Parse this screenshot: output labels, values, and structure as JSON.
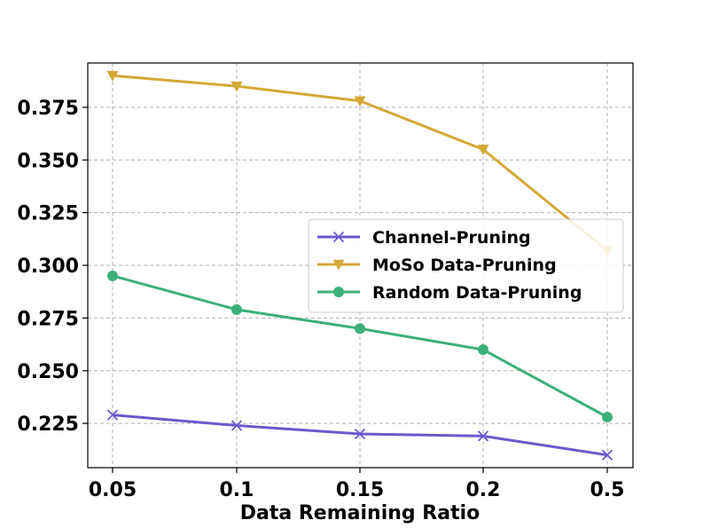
{
  "chart_data": {
    "type": "line",
    "categories": [
      "0.05",
      "0.1",
      "0.15",
      "0.2",
      "0.5"
    ],
    "xlabel": "Data Remaining Ratio",
    "ylabel": "",
    "ylim": [
      0.204,
      0.396
    ],
    "yticks": [
      "0.225",
      "0.250",
      "0.275",
      "0.300",
      "0.325",
      "0.350",
      "0.375"
    ],
    "grid": true,
    "legend_position": "center-right",
    "series": [
      {
        "name": "Channel-Pruning",
        "color": "#6a5acd",
        "marker": "x",
        "values": [
          0.229,
          0.224,
          0.22,
          0.219,
          0.21
        ]
      },
      {
        "name": "MoSo Data-Pruning",
        "color": "#d4a836",
        "marker": "triangle-down",
        "values": [
          0.39,
          0.385,
          0.378,
          0.355,
          0.307
        ]
      },
      {
        "name": "Random Data-Pruning",
        "color": "#3cb07a",
        "marker": "circle",
        "values": [
          0.295,
          0.279,
          0.27,
          0.26,
          0.228
        ]
      }
    ]
  }
}
